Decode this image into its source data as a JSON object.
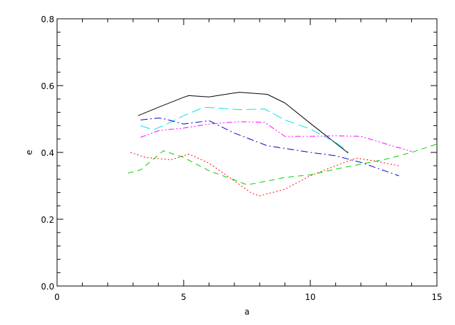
{
  "chart_data": {
    "type": "line",
    "title": "",
    "xlabel": "a",
    "ylabel": "e",
    "xlim": [
      0,
      15
    ],
    "ylim": [
      0,
      0.8
    ],
    "xticks": [
      0,
      5,
      10,
      15
    ],
    "xtick_labels": [
      "0",
      "5",
      "10",
      "15"
    ],
    "yticks": [
      0.0,
      0.2,
      0.4,
      0.6,
      0.8
    ],
    "ytick_labels": [
      "0.0",
      "0.2",
      "0.4",
      "0.6",
      "0.8"
    ],
    "x_minor_step": 1,
    "y_minor_step": 0.04,
    "grid": false,
    "legend": "none",
    "series": [
      {
        "color": "#000000",
        "dash": "solid",
        "x": [
          3.2,
          4.0,
          5.0,
          5.2,
          6.0,
          7.0,
          7.2,
          8.3,
          9.0,
          10.0,
          11.5
        ],
        "y": [
          0.51,
          0.535,
          0.565,
          0.57,
          0.566,
          0.578,
          0.58,
          0.574,
          0.548,
          0.487,
          0.398
        ]
      },
      {
        "color": "#00e5ee",
        "dash": "dashed-long",
        "x": [
          3.3,
          3.8,
          4.2,
          5.0,
          5.8,
          6.5,
          7.2,
          8.2,
          9.0,
          10.0,
          11.0,
          11.5
        ],
        "y": [
          0.48,
          0.468,
          0.48,
          0.51,
          0.535,
          0.532,
          0.528,
          0.53,
          0.497,
          0.47,
          0.43,
          0.402
        ]
      },
      {
        "color": "#0000cc",
        "dash": "dash-dot",
        "x": [
          3.3,
          4.0,
          4.2,
          5.0,
          6.0,
          7.0,
          8.3,
          9.0,
          10.0,
          11.0,
          12.0,
          13.5
        ],
        "y": [
          0.497,
          0.503,
          0.501,
          0.485,
          0.495,
          0.458,
          0.42,
          0.412,
          0.4,
          0.39,
          0.37,
          0.33
        ]
      },
      {
        "color": "#ff00ff",
        "dash": "dash-dot-dot",
        "x": [
          3.3,
          4.0,
          5.0,
          6.0,
          7.2,
          8.2,
          9.0,
          10.0,
          11.0,
          12.0,
          13.0,
          14.0
        ],
        "y": [
          0.445,
          0.465,
          0.473,
          0.485,
          0.492,
          0.49,
          0.448,
          0.448,
          0.45,
          0.448,
          0.425,
          0.403
        ]
      },
      {
        "color": "#ff0000",
        "dash": "dotted",
        "x": [
          2.9,
          3.5,
          4.5,
          5.2,
          6.0,
          7.0,
          7.7,
          8.0,
          9.0,
          10.0,
          11.0,
          11.8,
          12.5,
          13.5
        ],
        "y": [
          0.4,
          0.385,
          0.378,
          0.395,
          0.368,
          0.315,
          0.277,
          0.27,
          0.29,
          0.33,
          0.36,
          0.383,
          0.375,
          0.36
        ]
      },
      {
        "color": "#00cc00",
        "dash": "dashed",
        "x": [
          2.8,
          3.3,
          4.2,
          5.0,
          6.0,
          7.0,
          7.5,
          8.0,
          9.0,
          10.0,
          11.0,
          12.0,
          13.0,
          14.0,
          15.0
        ],
        "y": [
          0.338,
          0.348,
          0.405,
          0.385,
          0.345,
          0.318,
          0.303,
          0.31,
          0.325,
          0.333,
          0.35,
          0.365,
          0.38,
          0.4,
          0.425
        ]
      }
    ]
  }
}
